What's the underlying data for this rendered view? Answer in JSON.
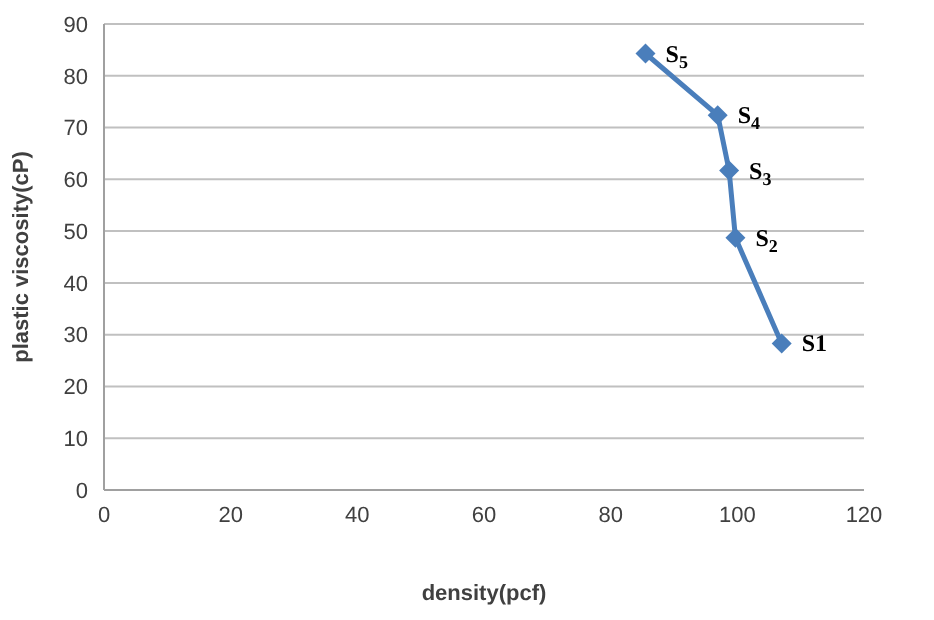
{
  "chart_data": {
    "type": "line",
    "xlabel": "density(pcf)",
    "ylabel": "plastic viscosity(cP)",
    "x": [
      107,
      99.7,
      98.7,
      96.9,
      85.5
    ],
    "series": [
      {
        "color": "#4a7ebb",
        "values": [
          28.3,
          48.7,
          61.7,
          72.4,
          84.3
        ]
      }
    ],
    "xlim": [
      0,
      120
    ],
    "xticks": [
      0,
      20,
      40,
      60,
      80,
      100,
      120
    ],
    "ylim": [
      0,
      90
    ],
    "yticks": [
      0,
      10,
      20,
      30,
      40,
      50,
      60,
      70,
      80,
      90
    ],
    "grid": "y",
    "marker": "diamond",
    "annotations": [
      {
        "text": "S1",
        "x": 107,
        "y": 28.3
      },
      {
        "text": "S$_{2}$",
        "x": 99.7,
        "y": 48.7
      },
      {
        "text": "S$_{3}$",
        "x": 98.7,
        "y": 61.7
      },
      {
        "text": "S$_{4}$",
        "x": 96.9,
        "y": 72.4
      },
      {
        "text": "S$_{5}$",
        "x": 85.5,
        "y": 84.3
      }
    ]
  }
}
